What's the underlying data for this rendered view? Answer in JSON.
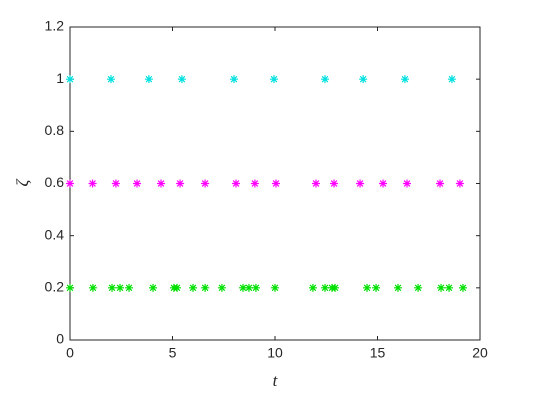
{
  "chart_data": {
    "type": "scatter",
    "x_label": "t",
    "y_label": "ζ",
    "xlim": [
      0,
      20
    ],
    "xticks": [
      0,
      5,
      10,
      15,
      20
    ],
    "ylim": [
      0,
      1.2
    ],
    "yticks": [
      0,
      0.2,
      0.4,
      0.6,
      0.8,
      1,
      1.2
    ],
    "series": [
      {
        "color": "#00e0e0",
        "x": [
          0,
          2.0,
          3.85,
          5.46,
          8.0,
          9.95,
          12.44,
          14.3,
          16.34,
          18.63
        ],
        "values": [
          1,
          1,
          1,
          1,
          1,
          1,
          1,
          1,
          1,
          1
        ]
      },
      {
        "color": "#ff00ff",
        "x": [
          0,
          1.1,
          2.24,
          3.27,
          4.44,
          5.37,
          6.59,
          8.1,
          9.02,
          10.05,
          12.0,
          12.88,
          14.15,
          15.27,
          16.44,
          18.05,
          19.02
        ],
        "values": [
          0.6,
          0.6,
          0.6,
          0.6,
          0.6,
          0.6,
          0.6,
          0.6,
          0.6,
          0.6,
          0.6,
          0.6,
          0.6,
          0.6,
          0.6,
          0.6,
          0.6
        ]
      },
      {
        "color": "#00e000",
        "x": [
          0,
          1.12,
          2.05,
          2.44,
          2.88,
          4.05,
          5.07,
          5.22,
          6.0,
          6.59,
          7.41,
          8.44,
          8.73,
          9.07,
          10.0,
          11.85,
          12.44,
          12.78,
          12.93,
          14.49,
          14.93,
          16.0,
          16.98,
          18.1,
          18.49,
          19.17
        ],
        "values": [
          0.2,
          0.2,
          0.2,
          0.2,
          0.2,
          0.2,
          0.2,
          0.2,
          0.2,
          0.2,
          0.2,
          0.2,
          0.2,
          0.2,
          0.2,
          0.2,
          0.2,
          0.2,
          0.2,
          0.2,
          0.2,
          0.2,
          0.2,
          0.2,
          0.2,
          0.2
        ]
      }
    ]
  }
}
